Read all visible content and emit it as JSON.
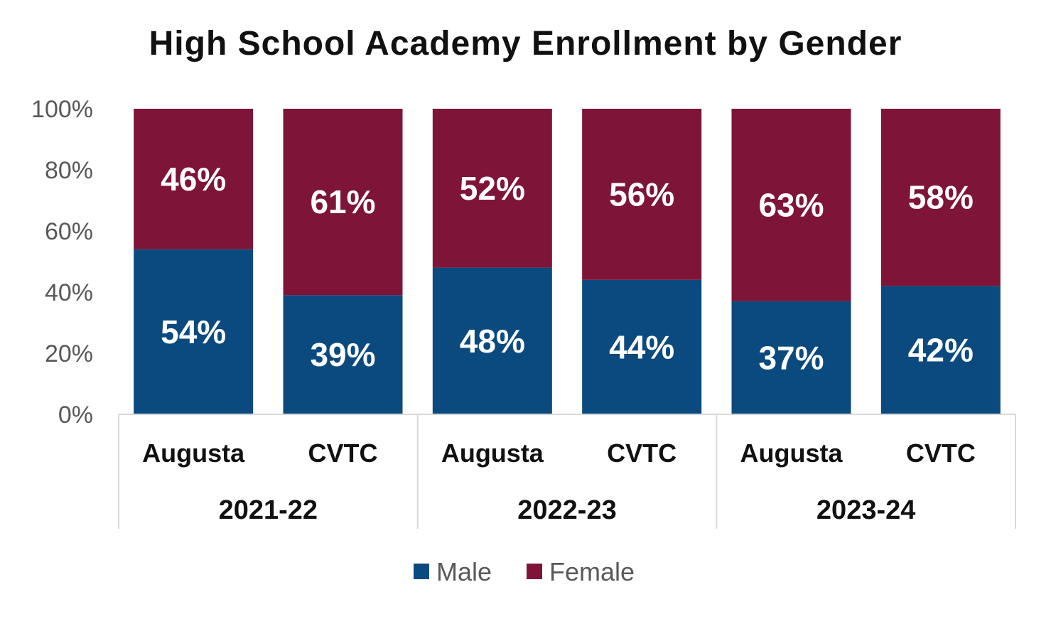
{
  "chart_data": {
    "type": "bar",
    "stacked": true,
    "title": "High School Academy Enrollment by Gender",
    "ylim": [
      0,
      100
    ],
    "yticks": [
      "0%",
      "20%",
      "40%",
      "60%",
      "80%",
      "100%"
    ],
    "groups": [
      "2021-22",
      "2022-23",
      "2023-24"
    ],
    "categories": [
      "Augusta",
      "CVTC",
      "Augusta",
      "CVTC",
      "Augusta",
      "CVTC"
    ],
    "series": [
      {
        "name": "Male",
        "color": "#0b4a7f",
        "values": [
          54,
          39,
          48,
          44,
          37,
          42
        ],
        "labels": [
          "54%",
          "39%",
          "48%",
          "44%",
          "37%",
          "42%"
        ]
      },
      {
        "name": "Female",
        "color": "#7e1437",
        "values": [
          46,
          61,
          52,
          56,
          63,
          58
        ],
        "labels": [
          "46%",
          "61%",
          "52%",
          "56%",
          "63%",
          "58%"
        ]
      }
    ],
    "legend": {
      "position": "bottom"
    },
    "grid": false
  }
}
